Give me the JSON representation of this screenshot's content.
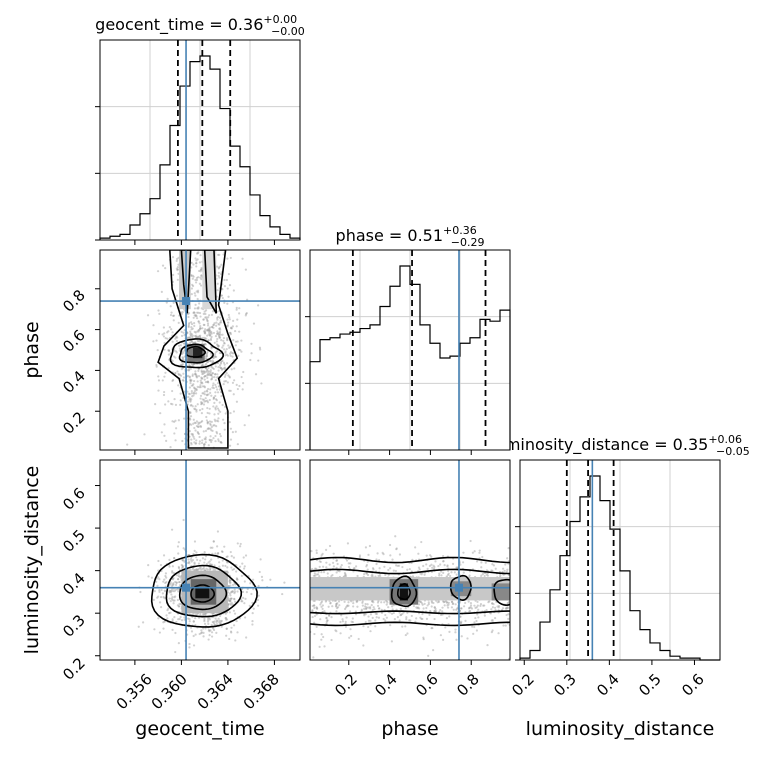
{
  "chart_data": {
    "type": "corner",
    "parameters": [
      "geocent_time",
      "phase",
      "luminosity_distance"
    ],
    "titles": [
      {
        "param": "geocent_time",
        "label": "geocent_time = 0.36",
        "sup": "+0.00",
        "sub": "−0.00"
      },
      {
        "param": "phase",
        "label": "phase = 0.51",
        "sup": "+0.36",
        "sub": "−0.29"
      },
      {
        "param": "luminosity_distance",
        "label": "luminosity_distance = 0.35",
        "sup": "+0.06",
        "sub": "−0.05"
      }
    ],
    "truths": {
      "geocent_time": 0.3604,
      "phase": 0.74,
      "luminosity_distance": 0.36
    },
    "ranges": {
      "geocent_time": [
        0.353,
        0.3702
      ],
      "phase": [
        0.01,
        0.99
      ],
      "luminosity_distance": [
        0.19,
        0.66
      ]
    },
    "quantiles": {
      "geocent_time": [
        0.3597,
        0.3618,
        0.3642
      ],
      "phase": [
        0.22,
        0.51,
        0.87
      ],
      "luminosity_distance": [
        0.3,
        0.35,
        0.41
      ]
    },
    "ticks": {
      "geocent_time": [
        "0.356",
        "0.360",
        "0.364",
        "0.368"
      ],
      "phase": [
        "0.2",
        "0.4",
        "0.6",
        "0.8"
      ],
      "luminosity_distance": [
        "0.2",
        "0.3",
        "0.4",
        "0.5",
        "0.6"
      ]
    },
    "y_ticks": {
      "phase": [
        "0.2",
        "0.4",
        "0.6",
        "0.8"
      ],
      "luminosity_distance": [
        "0.2",
        "0.3",
        "0.4",
        "0.5",
        "0.6"
      ]
    },
    "hist_geocent_time": [
      1,
      2,
      3,
      8,
      14,
      22,
      40,
      61,
      82,
      95,
      98,
      91,
      70,
      50,
      39,
      24,
      13,
      7,
      3,
      1
    ],
    "hist_phase": [
      48,
      60,
      61,
      63,
      64,
      66,
      68,
      78,
      89,
      100,
      90,
      68,
      58,
      50,
      51,
      58,
      61,
      71,
      70,
      76
    ],
    "hist_luminosity_distance": [
      1,
      5,
      20,
      37,
      55,
      73,
      86,
      97,
      84,
      69,
      47,
      26,
      16,
      9,
      5,
      2,
      1,
      1,
      0,
      0
    ],
    "grid": true,
    "colors": {
      "truth": "#4682b4",
      "hist": "#000000",
      "samples": "#999999"
    }
  }
}
